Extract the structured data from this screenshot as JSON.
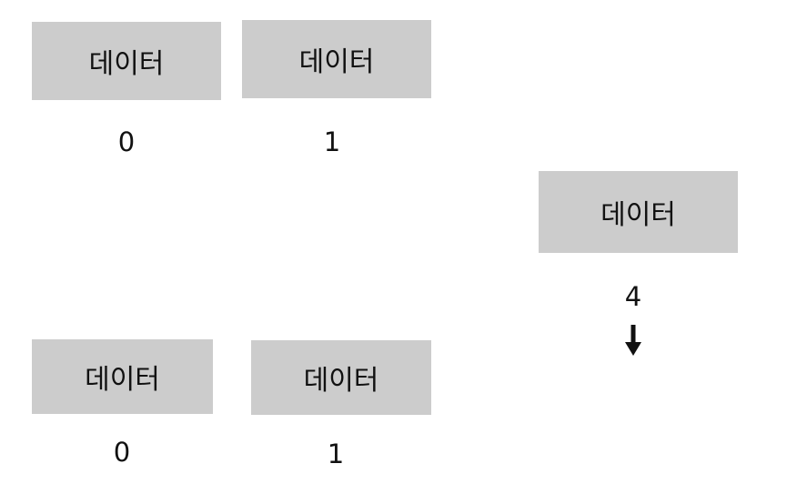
{
  "top_row": {
    "cells": [
      {
        "label": "데이터",
        "index": "0"
      },
      {
        "label": "데이터",
        "index": "1"
      }
    ]
  },
  "new_item": {
    "label": "데이터",
    "index": "4",
    "arrow_icon": "arrow-down-icon"
  },
  "bottom_row": {
    "cells": [
      {
        "label": "데이터",
        "index": "0"
      },
      {
        "label": "데이터",
        "index": "1"
      }
    ]
  },
  "colors": {
    "cell_fill": "#cccccc",
    "text": "#111111",
    "background": "#ffffff"
  }
}
